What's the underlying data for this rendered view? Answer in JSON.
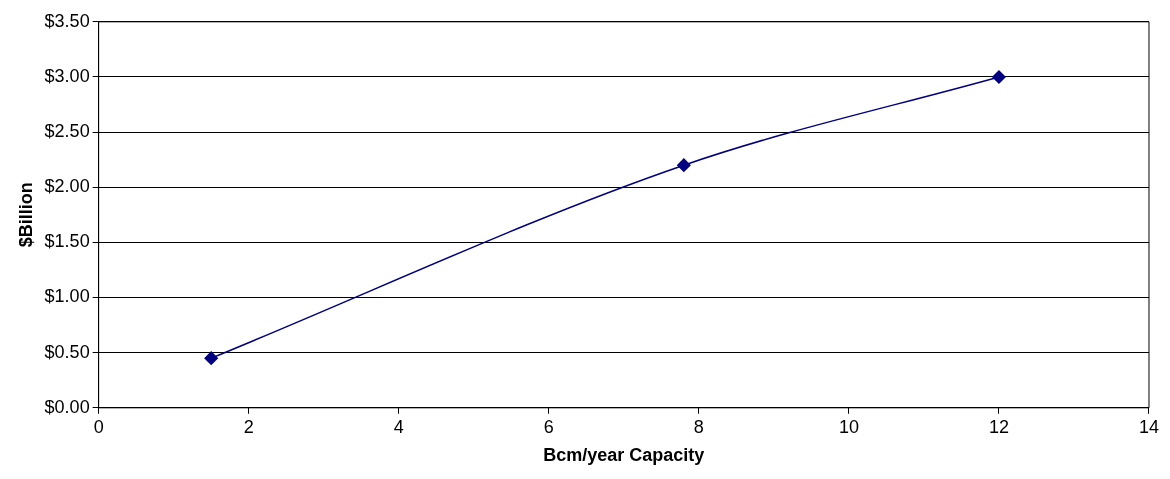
{
  "chart_data": {
    "type": "line",
    "xlabel": "Bcm/year Capacity",
    "ylabel": "$Billion",
    "series": [
      {
        "color": "#000080",
        "x": [
          1.5,
          7.8,
          12
        ],
        "values": [
          0.45,
          2.2,
          3.0
        ]
      }
    ],
    "xlim": [
      0,
      14
    ],
    "xticks": [
      0,
      2,
      4,
      6,
      8,
      10,
      12,
      14
    ],
    "ylim": [
      0,
      3.5
    ],
    "yticks": [
      {
        "value": 0,
        "label": "$0.00"
      },
      {
        "value": 0.5,
        "label": "$0.50"
      },
      {
        "value": 1,
        "label": "$1.00"
      },
      {
        "value": 1.5,
        "label": "$1.50"
      },
      {
        "value": 2,
        "label": "$2.00"
      },
      {
        "value": 2.5,
        "label": "$2.50"
      },
      {
        "value": 3,
        "label": "$3.00"
      },
      {
        "value": 3.5,
        "label": "$3.50"
      }
    ],
    "grid": "y",
    "legend": false,
    "marker": "diamond",
    "line_style": "solid"
  }
}
